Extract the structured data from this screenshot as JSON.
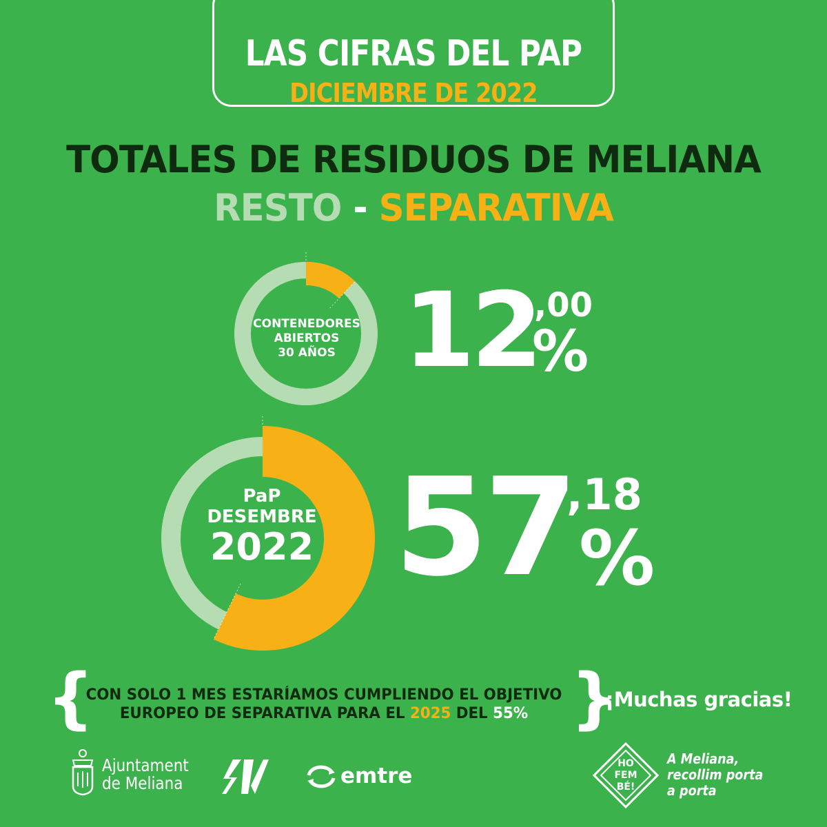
{
  "header": {
    "title": "LAS CIFRAS DEL PAP",
    "subtitle": "DICIEMBRE DE 2022"
  },
  "headline": {
    "title": "TOTALES DE RESIDUOS DE MELIANA",
    "resto": "RESTO",
    "separator": "-",
    "separativa": "SEPARATIVA"
  },
  "chart_data": [
    {
      "type": "pie",
      "variant": "donut",
      "center_label": [
        "CONTENEDORES",
        "ABIERTOS",
        "30 AÑOS"
      ],
      "values": [
        12.0,
        88.0
      ],
      "value_text": {
        "integer": "12",
        "decimal": ",00",
        "unit": "%"
      },
      "colors": [
        "#f7b015",
        "#b6dcb3"
      ]
    },
    {
      "type": "pie",
      "variant": "donut",
      "center_label": [
        "PaP",
        "DESEMBRE",
        "2022"
      ],
      "values": [
        57.18,
        42.82
      ],
      "value_text": {
        "integer": "57",
        "decimal": ",18",
        "unit": "%"
      },
      "colors": [
        "#f7b015",
        "#b6dcb3"
      ]
    }
  ],
  "note": {
    "line1": "CON SOLO 1 MES ESTARÍAMOS CUMPLIENDO EL OBJETIVO",
    "line2_a": "EUROPEO DE SEPARATIVA PARA EL ",
    "line2_year": "2025",
    "line2_b": " DEL ",
    "line2_pct": "55%"
  },
  "thanks": "¡Muchas gracias!",
  "logos": {
    "ajuntament_1": "Ajuntament",
    "ajuntament_2": "de Meliana",
    "emtre": "emtre",
    "hofembe_1": "HO",
    "hofembe_2": "FEM",
    "hofembe_3": "BÉ!",
    "slogan_1": "A Meliana,",
    "slogan_2": "recollim porta",
    "slogan_3": "a porta"
  },
  "colors": {
    "background": "#3bb24b",
    "accent": "#f7b015",
    "light_green": "#b6dcb3",
    "dark_text": "#0e2a0f"
  }
}
